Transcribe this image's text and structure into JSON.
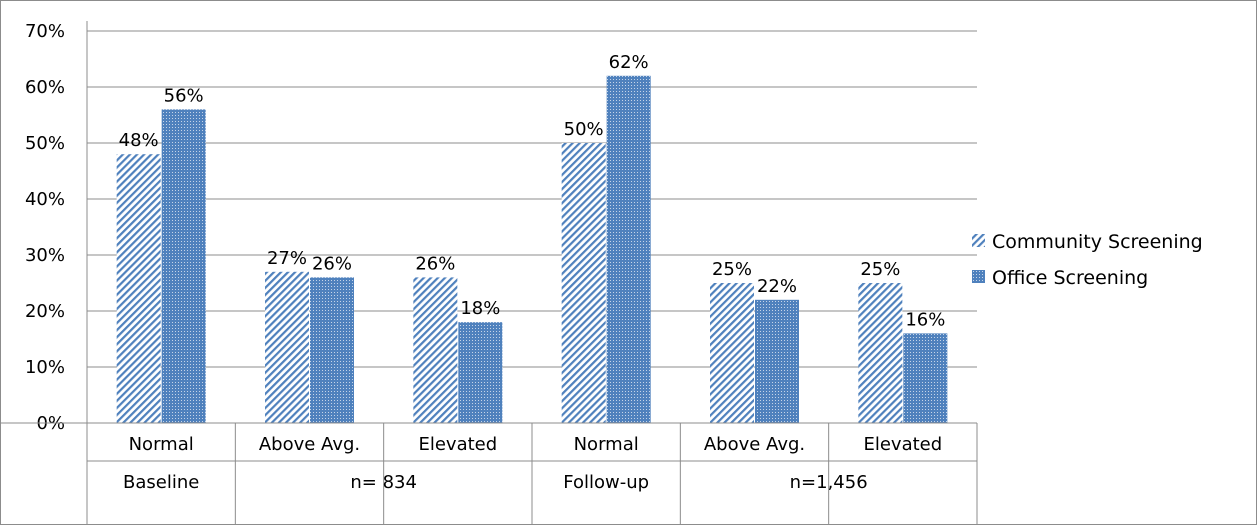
{
  "chart_data": {
    "type": "bar",
    "title": "",
    "xlabel": "",
    "ylabel": "",
    "ylim": [
      0,
      70
    ],
    "yticks": [
      "0%",
      "10%",
      "20%",
      "30%",
      "40%",
      "50%",
      "60%",
      "70%"
    ],
    "grid": true,
    "legend_position": "right",
    "categories": [
      "Normal",
      "Above Avg.",
      "Elevated",
      "Normal",
      "Above Avg.",
      "Elevated"
    ],
    "group_labels": [
      "Baseline",
      "n= 834",
      "Follow-up",
      "n=1,456"
    ],
    "series": [
      {
        "name": "Community Screening",
        "color": "#4f81bd",
        "pattern": "diagonal-stripes",
        "values": [
          48,
          27,
          26,
          50,
          25,
          25
        ],
        "labels": [
          "48%",
          "27%",
          "26%",
          "50%",
          "25%",
          "25%"
        ]
      },
      {
        "name": "Office Screening",
        "color": "#4f81bd",
        "pattern": "dotted",
        "values": [
          56,
          26,
          18,
          62,
          22,
          16
        ],
        "labels": [
          "56%",
          "26%",
          "18%",
          "62%",
          "22%",
          "16%"
        ]
      }
    ]
  }
}
